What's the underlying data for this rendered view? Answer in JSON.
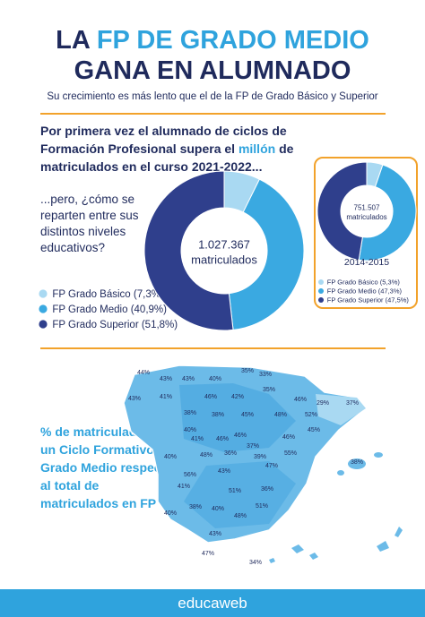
{
  "header": {
    "title_parts": [
      "LA ",
      "FP DE GRADO MEDIO",
      "GANA EN ALUMNADO"
    ],
    "subtitle": "Su crecimiento es más lento que el de la FP de Grado Básico y Superior"
  },
  "intro": [
    "Por primera vez el alumnado de ciclos de Formación Profesional supera el ",
    "millón",
    " de matriculados en el curso 2021-2022..."
  ],
  "question": "...pero, ¿cómo se reparten entre sus distintos niveles educativos?",
  "chart_data": [
    {
      "type": "pie",
      "center_value": "1.027.367",
      "center_label": "matriculados",
      "categories": [
        "FP Grado Básico (7,3%)",
        "FP Grado Medio (40,9%)",
        "FP Grado Superior (51,8%)"
      ],
      "values": [
        7.3,
        40.9,
        51.8
      ],
      "colors": [
        "#a9d9f2",
        "#3aa9e1",
        "#2f3f8c"
      ]
    },
    {
      "type": "pie",
      "center_value": "751.507",
      "center_label": "matriculados",
      "period": "2014-2015",
      "categories": [
        "FP Grado Básico (5,3%)",
        "FP Grado Medio (47,3%)",
        "FP Grado Superior (47,5%)"
      ],
      "values": [
        5.3,
        47.3,
        47.5
      ],
      "colors": [
        "#a9d9f2",
        "#3aa9e1",
        "#2f3f8c"
      ]
    }
  ],
  "map": {
    "caption": "% de matriculados en un Ciclo Formativo de Grado Medio respecto al total de matriculados en FP",
    "labels": [
      "44%",
      "43%",
      "43%",
      "40%",
      "35%",
      "33%",
      "35%",
      "46%",
      "29%",
      "37%",
      "43%",
      "41%",
      "46%",
      "42%",
      "38%",
      "38%",
      "45%",
      "48%",
      "52%",
      "40%",
      "46%",
      "41%",
      "46%",
      "46%",
      "45%",
      "40%",
      "48%",
      "37%",
      "55%",
      "47%",
      "36%",
      "56%",
      "43%",
      "39%",
      "38%",
      "41%",
      "51%",
      "36%",
      "40%",
      "38%",
      "40%",
      "48%",
      "51%",
      "43%",
      "47%",
      "34%"
    ]
  },
  "footer": {
    "brand": "educaweb"
  }
}
